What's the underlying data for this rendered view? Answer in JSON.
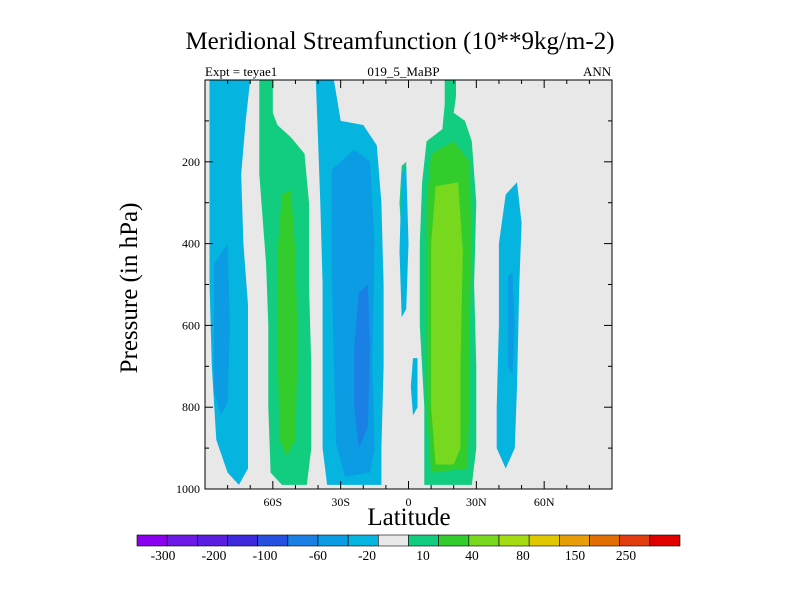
{
  "chart_data": {
    "type": "contour",
    "title": "Meridional Streamfunction (10**9kg/m-2)",
    "subtitle_left": "Expt = teyae1",
    "subtitle_center": "019_5_MaBP",
    "subtitle_right": "ANN",
    "xlabel": "Latitude",
    "ylabel": "Pressure (in hPa)",
    "xlim": [
      -90,
      90
    ],
    "ylim": [
      1000,
      0
    ],
    "x_ticks": [
      {
        "value": -60,
        "label": "60S"
      },
      {
        "value": -30,
        "label": "30S"
      },
      {
        "value": 0,
        "label": "0"
      },
      {
        "value": 30,
        "label": "30N"
      },
      {
        "value": 60,
        "label": "60N"
      }
    ],
    "y_ticks": [
      {
        "value": 200,
        "label": "200"
      },
      {
        "value": 400,
        "label": "400"
      },
      {
        "value": 600,
        "label": "600"
      },
      {
        "value": 800,
        "label": "800"
      },
      {
        "value": 1000,
        "label": "1000"
      }
    ],
    "background_color": "#e8e8e8",
    "contour_regions": [
      {
        "name": "sh-polar-cell",
        "level_color": "#06b4e0",
        "points": [
          [
            -88,
            0
          ],
          [
            -70,
            0
          ],
          [
            -72,
            100
          ],
          [
            -74,
            230
          ],
          [
            -73,
            400
          ],
          [
            -71,
            550
          ],
          [
            -71,
            700
          ],
          [
            -71,
            850
          ],
          [
            -71,
            950
          ],
          [
            -75,
            990
          ],
          [
            -80,
            960
          ],
          [
            -85,
            880
          ],
          [
            -87,
            700
          ],
          [
            -88,
            500
          ],
          [
            -88,
            250
          ]
        ]
      },
      {
        "name": "sh-polar-inner",
        "level_color": "#0c9ce4",
        "points": [
          [
            -86,
            450
          ],
          [
            -80,
            400
          ],
          [
            -79,
            600
          ],
          [
            -80,
            790
          ],
          [
            -83,
            820
          ],
          [
            -86,
            760
          ]
        ]
      },
      {
        "name": "sh-ferrel-outer",
        "level_color": "#12cc80",
        "points": [
          [
            -66,
            0
          ],
          [
            -60,
            0
          ],
          [
            -60,
            80
          ],
          [
            -58,
            110
          ],
          [
            -52,
            140
          ],
          [
            -46,
            180
          ],
          [
            -44,
            300
          ],
          [
            -44,
            500
          ],
          [
            -43,
            700
          ],
          [
            -43,
            900
          ],
          [
            -45,
            990
          ],
          [
            -56,
            990
          ],
          [
            -61,
            960
          ],
          [
            -62,
            800
          ],
          [
            -62,
            600
          ],
          [
            -63,
            450
          ],
          [
            -66,
            230
          ]
        ]
      },
      {
        "name": "sh-ferrel-inner",
        "level_color": "#32cc2c",
        "points": [
          [
            -56,
            280
          ],
          [
            -52,
            270
          ],
          [
            -50,
            420
          ],
          [
            -49,
            650
          ],
          [
            -50,
            880
          ],
          [
            -54,
            920
          ],
          [
            -57,
            880
          ],
          [
            -58,
            650
          ],
          [
            -58,
            420
          ]
        ]
      },
      {
        "name": "sh-hadley-outer",
        "level_color": "#06b4e0",
        "points": [
          [
            -41,
            0
          ],
          [
            -33,
            0
          ],
          [
            -30,
            100
          ],
          [
            -20,
            110
          ],
          [
            -14,
            160
          ],
          [
            -12,
            300
          ],
          [
            -11,
            500
          ],
          [
            -11,
            700
          ],
          [
            -12,
            900
          ],
          [
            -12,
            990
          ],
          [
            -36,
            990
          ],
          [
            -38,
            900
          ],
          [
            -38,
            700
          ],
          [
            -38,
            500
          ],
          [
            -39,
            300
          ],
          [
            -40,
            150
          ]
        ]
      },
      {
        "name": "sh-hadley-mid",
        "level_color": "#0c9ce4",
        "points": [
          [
            -34,
            220
          ],
          [
            -24,
            170
          ],
          [
            -17,
            200
          ],
          [
            -15,
            400
          ],
          [
            -16,
            700
          ],
          [
            -15,
            900
          ],
          [
            -17,
            960
          ],
          [
            -28,
            970
          ],
          [
            -32,
            890
          ],
          [
            -33,
            700
          ],
          [
            -34,
            460
          ]
        ]
      },
      {
        "name": "sh-hadley-inner",
        "level_color": "#1a80e6",
        "points": [
          [
            -22,
            520
          ],
          [
            -18,
            500
          ],
          [
            -17,
            650
          ],
          [
            -18,
            850
          ],
          [
            -22,
            900
          ],
          [
            -24,
            800
          ],
          [
            -24,
            650
          ]
        ]
      },
      {
        "name": "eq-sliver-top",
        "level_color": "#12cc80",
        "points": [
          [
            -3,
            210
          ],
          [
            -1,
            200
          ],
          [
            -1,
            370
          ],
          [
            -3,
            390
          ],
          [
            -4,
            300
          ]
        ]
      },
      {
        "name": "eq-sliver-mid",
        "level_color": "#06b4e0",
        "points": [
          [
            -3,
            230
          ],
          [
            -1,
            210
          ],
          [
            0,
            400
          ],
          [
            -1,
            560
          ],
          [
            -3,
            580
          ],
          [
            -4,
            420
          ]
        ]
      },
      {
        "name": "eq-sliver-bottom",
        "level_color": "#06b4e0",
        "points": [
          [
            2,
            680
          ],
          [
            4,
            680
          ],
          [
            4,
            800
          ],
          [
            2,
            820
          ],
          [
            1,
            750
          ]
        ]
      },
      {
        "name": "nh-hadley-outer",
        "level_color": "#12cc80",
        "points": [
          [
            16,
            0
          ],
          [
            21,
            0
          ],
          [
            21,
            40
          ],
          [
            20,
            80
          ],
          [
            25,
            100
          ],
          [
            28,
            150
          ],
          [
            30,
            300
          ],
          [
            29,
            500
          ],
          [
            30,
            700
          ],
          [
            30,
            900
          ],
          [
            28,
            990
          ],
          [
            7,
            990
          ],
          [
            7,
            800
          ],
          [
            5,
            600
          ],
          [
            5,
            400
          ],
          [
            6,
            250
          ],
          [
            8,
            150
          ],
          [
            15,
            120
          ],
          [
            16,
            60
          ]
        ]
      },
      {
        "name": "nh-hadley-mid",
        "level_color": "#32cc2c",
        "points": [
          [
            10,
            180
          ],
          [
            20,
            150
          ],
          [
            27,
            200
          ],
          [
            28,
            400
          ],
          [
            27,
            600
          ],
          [
            27,
            800
          ],
          [
            26,
            950
          ],
          [
            10,
            960
          ],
          [
            8,
            800
          ],
          [
            8,
            600
          ],
          [
            8,
            300
          ]
        ]
      },
      {
        "name": "nh-hadley-inner",
        "level_color": "#78d81e",
        "points": [
          [
            12,
            260
          ],
          [
            22,
            250
          ],
          [
            24,
            420
          ],
          [
            23,
            700
          ],
          [
            23,
            900
          ],
          [
            20,
            940
          ],
          [
            12,
            940
          ],
          [
            10,
            800
          ],
          [
            10,
            600
          ],
          [
            10,
            400
          ]
        ]
      },
      {
        "name": "nh-ferrel",
        "level_color": "#06b4e0",
        "points": [
          [
            43,
            280
          ],
          [
            48,
            250
          ],
          [
            50,
            350
          ],
          [
            49,
            500
          ],
          [
            48,
            750
          ],
          [
            47,
            900
          ],
          [
            43,
            950
          ],
          [
            39,
            900
          ],
          [
            39,
            800
          ],
          [
            40,
            600
          ],
          [
            40,
            400
          ]
        ]
      },
      {
        "name": "nh-ferrel-inner",
        "level_color": "#0c9ce4",
        "points": [
          [
            44,
            480
          ],
          [
            46,
            470
          ],
          [
            47,
            600
          ],
          [
            46,
            720
          ],
          [
            44,
            700
          ]
        ]
      }
    ],
    "colorbar": {
      "colors": [
        "#8c00f0",
        "#6e1ae6",
        "#5a1ee0",
        "#3d28dc",
        "#2850e0",
        "#1a80e6",
        "#0c9ce4",
        "#06b4e0",
        "#e8e8e8",
        "#12cc80",
        "#32cc2c",
        "#78d81e",
        "#a4dc14",
        "#e0c800",
        "#e89e08",
        "#e06e00",
        "#e03c10",
        "#e00000"
      ],
      "labels": [
        "-300",
        "-200",
        "-100",
        "-60",
        "-20",
        "10",
        "40",
        "80",
        "150",
        "250"
      ]
    }
  }
}
